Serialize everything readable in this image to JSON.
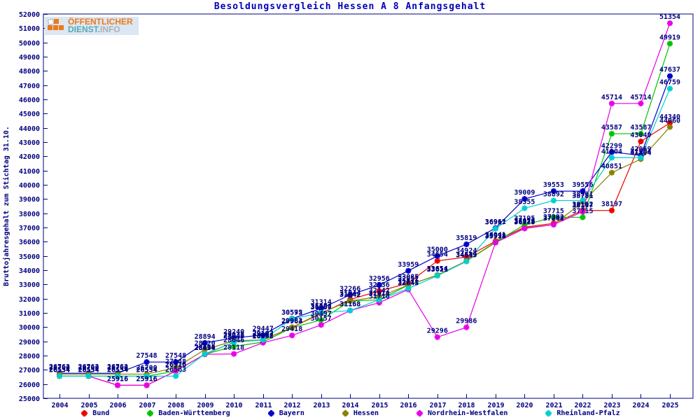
{
  "logo": {
    "line1": "ÖFFENTLICHER",
    "line2_strong": "DIENST.",
    "line2_muted": "INFO"
  },
  "chart_data": {
    "type": "line",
    "title": "Besoldungsvergleich Hessen A 8 Anfangsgehalt",
    "xlabel": "",
    "ylabel": "Bruttojahresgehalt zum Stichtag 31.10.",
    "ylim": [
      25000,
      52000
    ],
    "ytick_step": 1000,
    "grid": false,
    "legend_position": "bottom",
    "axis_color": "#000080",
    "label_color": "#000080",
    "title_color": "#0000bb",
    "x": [
      2004,
      2005,
      2006,
      2007,
      2008,
      2009,
      2010,
      2011,
      2012,
      2013,
      2014,
      2015,
      2016,
      2017,
      2018,
      2019,
      2020,
      2021,
      2022,
      2023,
      2024,
      2025
    ],
    "series": [
      {
        "name": "Bund",
        "color": "#ee0000",
        "values": [
          26554,
          26554,
          25916,
          25916,
          26916,
          28094,
          28943,
          29107,
          29983,
          30957,
          31944,
          32536,
          33085,
          34654,
          34924,
          36041,
          37026,
          37292,
          38192,
          38197,
          43049,
          44340
        ]
      },
      {
        "name": "Baden-Württemberg",
        "color": "#00c400",
        "values": [
          26554,
          26554,
          26554,
          26554,
          26916,
          28094,
          28646,
          28947,
          29964,
          30497,
          31842,
          31914,
          32951,
          33654,
          34649,
          35978,
          37195,
          37715,
          37715,
          43587,
          43587,
          49919
        ]
      },
      {
        "name": "Bayern",
        "color": "#0000cc",
        "values": [
          26762,
          26762,
          26762,
          27548,
          27548,
          28894,
          29240,
          29447,
          30592,
          31314,
          32266,
          32956,
          33959,
          35000,
          35819,
          36961,
          39009,
          39553,
          39556,
          42299,
          42069,
          47637
        ]
      },
      {
        "name": "Hessen",
        "color": "#8b8000",
        "values": [
          26700,
          26700,
          26700,
          26700,
          27148,
          28420,
          29033,
          29107,
          29983,
          31008,
          31842,
          32142,
          32951,
          33654,
          34649,
          35938,
          36973,
          37202,
          38781,
          40851,
          41804,
          44060
        ]
      },
      {
        "name": "Nordrhein-Westfalen",
        "color": "#e800e8",
        "values": [
          26554,
          26554,
          25916,
          25916,
          26916,
          28094,
          28118,
          28908,
          29418,
          30157,
          31168,
          31716,
          32645,
          29296,
          29986,
          35938,
          36928,
          37202,
          38107,
          45714,
          45714,
          51354
        ]
      },
      {
        "name": "Rheinland-Pfalz",
        "color": "#00d0d0",
        "values": [
          26554,
          26554,
          26554,
          26554,
          26563,
          28119,
          28940,
          29107,
          30575,
          31008,
          31168,
          31914,
          32711,
          33611,
          34615,
          36917,
          38355,
          38892,
          38901,
          41904,
          41904,
          46759
        ]
      }
    ]
  }
}
